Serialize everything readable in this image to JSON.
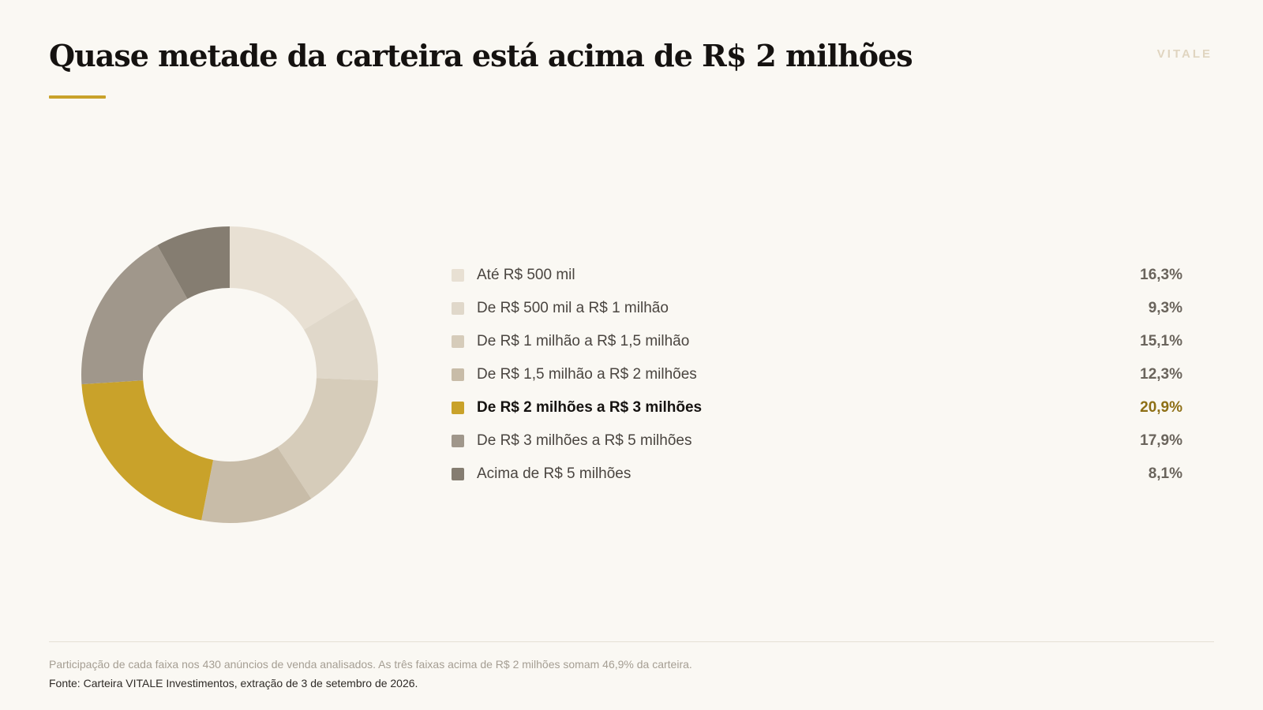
{
  "header": {
    "title": "Quase metade da carteira está acima de R$ 2 milhões",
    "brand": "VITALE",
    "accent_color": "#c9a22a"
  },
  "chart_data": {
    "type": "pie",
    "variant": "donut",
    "unit": "%",
    "highlight_index": 4,
    "categories": [
      "Até R$ 500 mil",
      "De R$ 500 mil a R$ 1 milhão",
      "De R$ 1 milhão a R$ 1,5 milhão",
      "De R$ 1,5 milhão a R$ 2 milhões",
      "De R$ 2 milhões a R$ 3 milhões",
      "De R$ 3 milhões a R$ 5 milhões",
      "Acima de R$ 5 milhões"
    ],
    "values": [
      16.3,
      9.3,
      15.1,
      12.3,
      20.9,
      17.9,
      8.1
    ],
    "value_labels": [
      "16,3%",
      "9,3%",
      "15,1%",
      "12,3%",
      "20,9%",
      "17,9%",
      "8,1%"
    ],
    "colors": [
      "#e8e0d3",
      "#e0d8ca",
      "#d6ccba",
      "#c8bca8",
      "#c9a22a",
      "#a0978b",
      "#857d71"
    ],
    "legend_position": "right"
  },
  "footer": {
    "note": "Participação de cada faixa nos 430 anúncios de venda analisados. As três faixas acima de R$ 2 milhões somam 46,9% da carteira.",
    "source": "Fonte: Carteira VITALE Investimentos, extração de 3 de setembro de 2026."
  }
}
